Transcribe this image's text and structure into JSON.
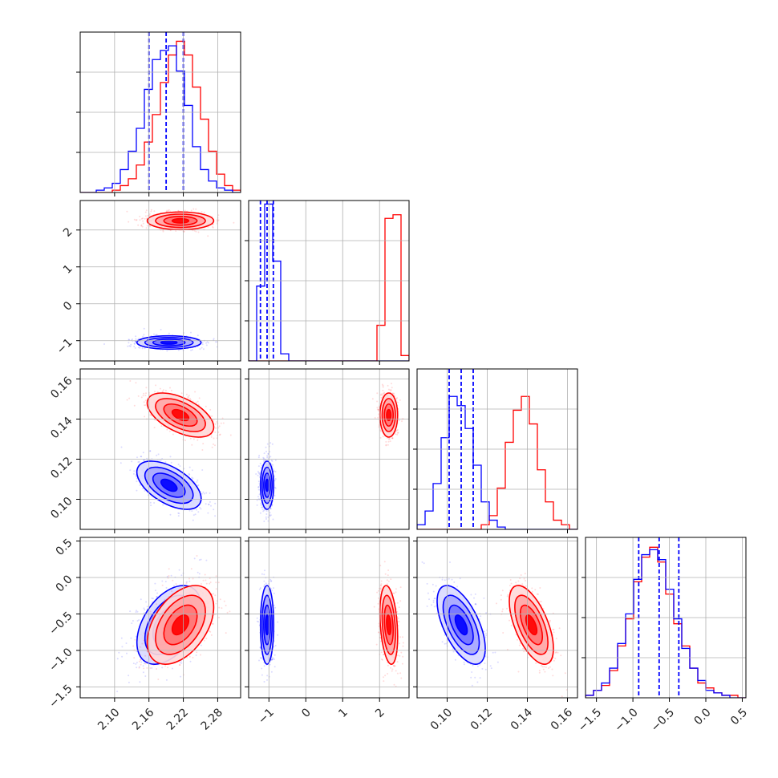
{
  "chart_data": {
    "type": "corner",
    "grid": true,
    "series": [
      {
        "color": "#0000ff"
      },
      {
        "color": "#ff0000"
      }
    ],
    "params": [
      {
        "range": [
          2.04,
          2.32
        ],
        "ticks": [
          2.1,
          2.16,
          2.22,
          2.28
        ],
        "tick_labels": [
          "2.10",
          "2.16",
          "2.22",
          "2.28"
        ]
      },
      {
        "range": [
          -1.55,
          2.8
        ],
        "ticks": [
          -1,
          0,
          1,
          2
        ],
        "tick_labels": [
          "−1",
          "0",
          "1",
          "2"
        ]
      },
      {
        "range": [
          0.085,
          0.165
        ],
        "ticks": [
          0.1,
          0.12,
          0.14,
          0.16
        ],
        "tick_labels": [
          "0.10",
          "0.12",
          "0.14",
          "0.16"
        ]
      },
      {
        "range": [
          -1.65,
          0.55
        ],
        "ticks": [
          -1.5,
          -1.0,
          -0.5,
          0.0,
          0.5
        ],
        "tick_labels": [
          "−1.5",
          "−1.0",
          "−0.5",
          "0.0",
          "0.5"
        ]
      }
    ],
    "marginals": [
      {
        "quantile_lines": [
          2.16,
          2.19,
          2.22
        ],
        "ylim": [
          0,
          70
        ],
        "bin_edges": [
          2.04,
          2.054,
          2.068,
          2.082,
          2.096,
          2.11,
          2.124,
          2.138,
          2.152,
          2.166,
          2.18,
          2.194,
          2.208,
          2.222,
          2.236,
          2.25,
          2.264,
          2.278,
          2.292,
          2.306,
          2.32
        ],
        "counts": [
          [
            0,
            0,
            1,
            2,
            4,
            10,
            18,
            28,
            45,
            58,
            62,
            64,
            53,
            38,
            20,
            10,
            5,
            2,
            1,
            0
          ],
          [
            0,
            0,
            0,
            0,
            1,
            3,
            6,
            12,
            22,
            34,
            48,
            60,
            66,
            60,
            46,
            32,
            18,
            8,
            3,
            1
          ]
        ]
      },
      {
        "quantile_lines": [
          -1.23,
          -1.05,
          -0.88
        ],
        "ylim": [
          0,
          90
        ],
        "bin_edges": [
          -1.55,
          -1.3325,
          -1.115,
          -0.8975,
          -0.68,
          -0.4625,
          -0.245,
          -0.0275,
          0.19,
          0.4075,
          0.625,
          0.8425,
          1.06,
          1.2775,
          1.495,
          1.7125,
          1.93,
          2.1475,
          2.365,
          2.5825,
          2.8
        ],
        "counts": [
          [
            0,
            42,
            88,
            56,
            4,
            0,
            0,
            0,
            0,
            0,
            0,
            0,
            0,
            0,
            0,
            0,
            0,
            0,
            0,
            0
          ],
          [
            0,
            0,
            0,
            0,
            0,
            0,
            0,
            0,
            0,
            0,
            0,
            0,
            0,
            0,
            0,
            0,
            20,
            80,
            82,
            3
          ]
        ]
      },
      {
        "quantile_lines": [
          0.101,
          0.107,
          0.113
        ],
        "ylim": [
          0,
          70
        ],
        "bin_edges": [
          0.085,
          0.089,
          0.093,
          0.097,
          0.101,
          0.105,
          0.109,
          0.113,
          0.117,
          0.121,
          0.125,
          0.129,
          0.133,
          0.137,
          0.141,
          0.145,
          0.149,
          0.153,
          0.157,
          0.161,
          0.165
        ],
        "counts": [
          [
            2,
            8,
            20,
            40,
            58,
            54,
            44,
            28,
            12,
            4,
            1,
            0,
            0,
            0,
            0,
            0,
            0,
            0,
            0,
            0
          ],
          [
            0,
            0,
            0,
            0,
            0,
            0,
            0,
            0,
            2,
            6,
            18,
            38,
            52,
            58,
            46,
            26,
            12,
            4,
            2,
            0
          ]
        ]
      },
      {
        "quantile_lines": [
          -0.92,
          -0.64,
          -0.37
        ],
        "ylim": [
          0,
          65
        ],
        "bin_edges": [
          -1.65,
          -1.54,
          -1.43,
          -1.32,
          -1.21,
          -1.1,
          -0.99,
          -0.88,
          -0.77,
          -0.66,
          -0.55,
          -0.44,
          -0.33,
          -0.22,
          -0.11,
          0.0,
          0.11,
          0.22,
          0.33,
          0.44,
          0.55
        ],
        "counts": [
          [
            1,
            3,
            6,
            12,
            22,
            34,
            48,
            58,
            60,
            56,
            44,
            32,
            20,
            12,
            7,
            3,
            2,
            1,
            0,
            0
          ],
          [
            1,
            3,
            5,
            11,
            21,
            32,
            47,
            57,
            61,
            55,
            42,
            30,
            21,
            12,
            6,
            4,
            2,
            1,
            1,
            0
          ]
        ]
      }
    ],
    "pairs": [
      {
        "x": 0,
        "y": 1,
        "blobs": [
          {
            "series": 0,
            "mean": [
              2.195,
              -1.05
            ],
            "sd": [
              0.028,
              0.09
            ],
            "rho": 0.0
          },
          {
            "series": 1,
            "mean": [
              2.215,
              2.25
            ],
            "sd": [
              0.029,
              0.12
            ],
            "rho": 0.0
          }
        ]
      },
      {
        "x": 0,
        "y": 2,
        "blobs": [
          {
            "series": 0,
            "mean": [
              2.195,
              0.107
            ],
            "sd": [
              0.028,
              0.006
            ],
            "rho": -0.55
          },
          {
            "series": 1,
            "mean": [
              2.215,
              0.142
            ],
            "sd": [
              0.029,
              0.0055
            ],
            "rho": -0.55
          }
        ]
      },
      {
        "x": 1,
        "y": 2,
        "blobs": [
          {
            "series": 0,
            "mean": [
              -1.05,
              0.107
            ],
            "sd": [
              0.09,
              0.006
            ],
            "rho": 0.0
          },
          {
            "series": 1,
            "mean": [
              2.25,
              0.142
            ],
            "sd": [
              0.12,
              0.0055
            ],
            "rho": 0.0
          }
        ]
      },
      {
        "x": 0,
        "y": 3,
        "blobs": [
          {
            "series": 0,
            "mean": [
              2.195,
              -0.65
            ],
            "sd": [
              0.028,
              0.27
            ],
            "rho": 0.45
          },
          {
            "series": 1,
            "mean": [
              2.215,
              -0.65
            ],
            "sd": [
              0.029,
              0.27
            ],
            "rho": 0.45
          }
        ]
      },
      {
        "x": 1,
        "y": 3,
        "blobs": [
          {
            "series": 0,
            "mean": [
              -1.05,
              -0.65
            ],
            "sd": [
              0.09,
              0.27
            ],
            "rho": 0.0
          },
          {
            "series": 1,
            "mean": [
              2.25,
              -0.65
            ],
            "sd": [
              0.12,
              0.27
            ],
            "rho": -0.3
          }
        ]
      },
      {
        "x": 2,
        "y": 3,
        "blobs": [
          {
            "series": 0,
            "mean": [
              0.107,
              -0.65
            ],
            "sd": [
              0.006,
              0.27
            ],
            "rho": -0.6
          },
          {
            "series": 1,
            "mean": [
              0.142,
              -0.65
            ],
            "sd": [
              0.0055,
              0.27
            ],
            "rho": -0.6
          }
        ]
      }
    ]
  }
}
